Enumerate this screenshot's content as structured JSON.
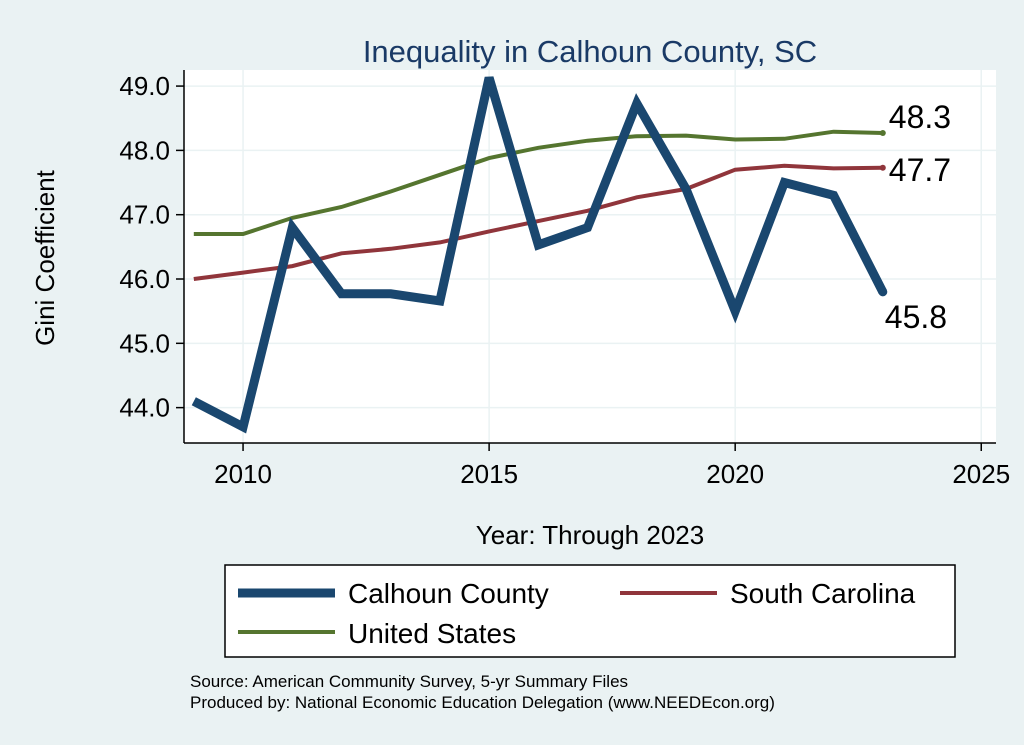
{
  "chart_data": {
    "type": "line",
    "title": "Inequality in Calhoun County, SC",
    "xlabel": "Year: Through 2023",
    "ylabel": "Gini Coefficient",
    "xlim": [
      2008.8,
      2025.3
    ],
    "ylim": [
      43.45,
      49.25
    ],
    "x_ticks": [
      2010,
      2015,
      2020,
      2025
    ],
    "y_ticks": [
      44.0,
      45.0,
      46.0,
      47.0,
      48.0,
      49.0
    ],
    "grid": true,
    "legend_position": "bottom",
    "series": [
      {
        "name": "Calhoun County",
        "color": "#1a476f",
        "width": 9,
        "x": [
          2009,
          2010,
          2011,
          2012,
          2013,
          2014,
          2015,
          2016,
          2017,
          2018,
          2019,
          2020,
          2021,
          2022,
          2023
        ],
        "values": [
          44.1,
          43.7,
          46.8,
          45.77,
          45.77,
          45.66,
          49.13,
          46.53,
          46.8,
          48.73,
          47.4,
          45.5,
          47.5,
          47.3,
          45.8
        ],
        "end_label": "45.8"
      },
      {
        "name": "South Carolina",
        "color": "#90353b",
        "width": 4,
        "x": [
          2009,
          2010,
          2011,
          2012,
          2013,
          2014,
          2015,
          2016,
          2017,
          2018,
          2019,
          2020,
          2021,
          2022,
          2023
        ],
        "values": [
          46.0,
          46.1,
          46.2,
          46.4,
          46.47,
          46.57,
          46.74,
          46.9,
          47.06,
          47.27,
          47.4,
          47.7,
          47.76,
          47.72,
          47.73
        ],
        "end_label": "47.7"
      },
      {
        "name": "United States",
        "color": "#55752f",
        "width": 4,
        "x": [
          2009,
          2010,
          2011,
          2012,
          2013,
          2014,
          2015,
          2016,
          2017,
          2018,
          2019,
          2020,
          2021,
          2022,
          2023
        ],
        "values": [
          46.7,
          46.7,
          46.95,
          47.12,
          47.36,
          47.62,
          47.88,
          48.04,
          48.15,
          48.22,
          48.23,
          48.17,
          48.18,
          48.29,
          48.27
        ],
        "end_label": "48.3"
      }
    ],
    "notes": [
      "Source: American Community Survey, 5-yr Summary Files",
      "Produced by: National Economic Education Delegation (www.NEEDEcon.org)"
    ]
  }
}
